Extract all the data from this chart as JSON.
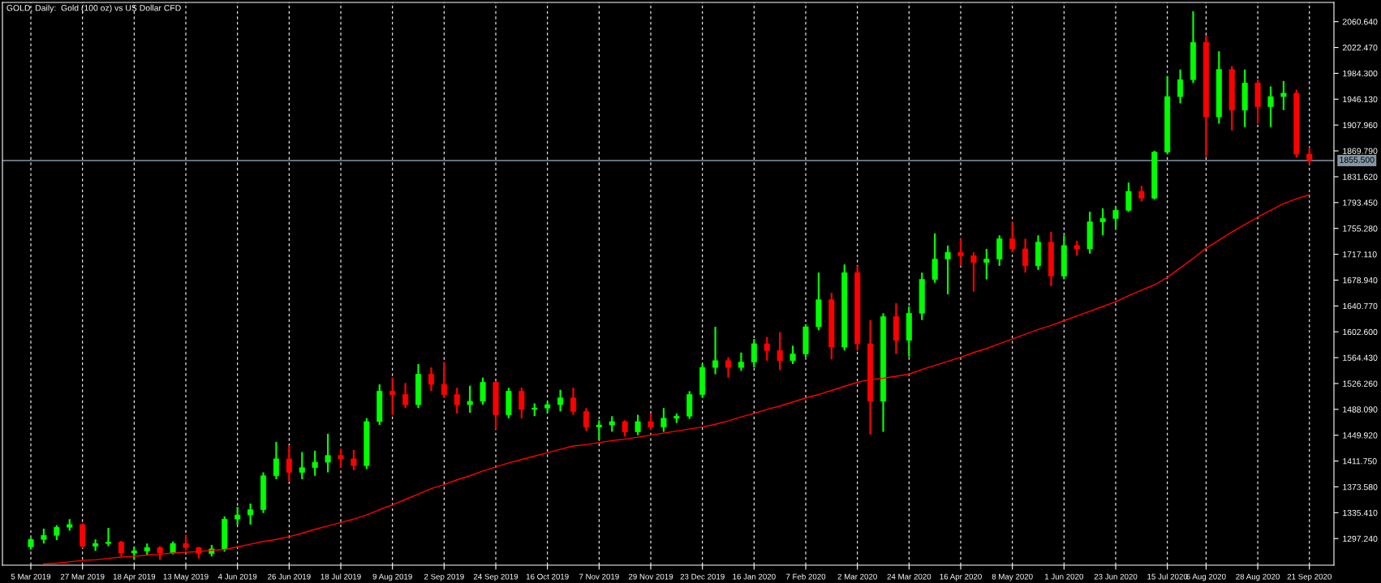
{
  "chart_data": {
    "type": "candlestick",
    "title": "GOLD, Daily:  Gold (100 oz) vs US Dollar CFD",
    "categories": [
      "5 Mar 2019",
      null,
      null,
      null,
      "27 Mar 2019",
      null,
      null,
      null,
      "18 Apr 2019",
      null,
      null,
      null,
      "13 May 2019",
      null,
      null,
      null,
      "4 Jun 2019",
      null,
      null,
      null,
      "26 Jun 2019",
      null,
      null,
      null,
      "18 Jul 2019",
      null,
      null,
      null,
      "9 Aug 2019",
      null,
      null,
      null,
      "2 Sep 2019",
      null,
      null,
      null,
      "24 Sep 2019",
      null,
      null,
      null,
      "16 Oct 2019",
      null,
      null,
      null,
      "7 Nov 2019",
      null,
      null,
      null,
      "29 Nov 2019",
      null,
      null,
      null,
      "23 Dec 2019",
      null,
      null,
      null,
      "16 Jan 2020",
      null,
      null,
      null,
      "7 Feb 2020",
      null,
      null,
      null,
      "2 Mar 2020",
      null,
      null,
      null,
      "24 Mar 2020",
      null,
      null,
      null,
      "16 Apr 2020",
      null,
      null,
      null,
      "8 May 2020",
      null,
      null,
      null,
      "1 Jun 2020",
      null,
      null,
      null,
      "23 Jun 2020",
      null,
      null,
      null,
      "15 Jul 2020",
      null,
      null,
      "6 Aug 2020",
      null,
      null,
      null,
      "28 Aug 2020",
      null,
      null,
      null,
      "21 Sep 2020"
    ],
    "ohlc": [
      [
        1285,
        1298,
        1281,
        1296
      ],
      [
        1296,
        1312,
        1290,
        1302
      ],
      [
        1302,
        1317,
        1295,
        1314
      ],
      [
        1314,
        1326,
        1309,
        1318
      ],
      [
        1318,
        1320,
        1283,
        1286
      ],
      [
        1286,
        1296,
        1279,
        1290
      ],
      [
        1290,
        1313,
        1286,
        1292
      ],
      [
        1292,
        1294,
        1271,
        1276
      ],
      [
        1276,
        1285,
        1266,
        1279
      ],
      [
        1279,
        1290,
        1273,
        1284
      ],
      [
        1284,
        1286,
        1266,
        1276
      ],
      [
        1276,
        1293,
        1274,
        1290
      ],
      [
        1290,
        1303,
        1280,
        1284
      ],
      [
        1284,
        1285,
        1268,
        1275
      ],
      [
        1275,
        1288,
        1271,
        1282
      ],
      [
        1282,
        1330,
        1278,
        1326
      ],
      [
        1326,
        1344,
        1318,
        1332
      ],
      [
        1332,
        1349,
        1318,
        1340
      ],
      [
        1340,
        1395,
        1335,
        1390
      ],
      [
        1390,
        1440,
        1385,
        1415
      ],
      [
        1415,
        1435,
        1382,
        1395
      ],
      [
        1395,
        1425,
        1385,
        1402
      ],
      [
        1402,
        1427,
        1390,
        1410
      ],
      [
        1410,
        1452,
        1395,
        1420
      ],
      [
        1420,
        1430,
        1402,
        1415
      ],
      [
        1415,
        1428,
        1398,
        1405
      ],
      [
        1405,
        1475,
        1400,
        1470
      ],
      [
        1470,
        1525,
        1465,
        1515
      ],
      [
        1515,
        1535,
        1480,
        1510
      ],
      [
        1510,
        1527,
        1490,
        1495
      ],
      [
        1495,
        1555,
        1490,
        1540
      ],
      [
        1540,
        1550,
        1515,
        1525
      ],
      [
        1525,
        1558,
        1505,
        1510
      ],
      [
        1510,
        1520,
        1482,
        1495
      ],
      [
        1495,
        1523,
        1483,
        1500
      ],
      [
        1500,
        1535,
        1495,
        1528
      ],
      [
        1528,
        1530,
        1459,
        1480
      ],
      [
        1480,
        1520,
        1475,
        1515
      ],
      [
        1515,
        1520,
        1475,
        1488
      ],
      [
        1488,
        1497,
        1478,
        1490
      ],
      [
        1490,
        1500,
        1483,
        1495
      ],
      [
        1495,
        1517,
        1485,
        1505
      ],
      [
        1505,
        1520,
        1480,
        1485
      ],
      [
        1485,
        1490,
        1456,
        1462
      ],
      [
        1462,
        1472,
        1443,
        1465
      ],
      [
        1465,
        1478,
        1455,
        1470
      ],
      [
        1470,
        1472,
        1448,
        1455
      ],
      [
        1455,
        1480,
        1450,
        1470
      ],
      [
        1470,
        1482,
        1458,
        1462
      ],
      [
        1462,
        1490,
        1455,
        1475
      ],
      [
        1475,
        1482,
        1468,
        1478
      ],
      [
        1478,
        1515,
        1474,
        1510
      ],
      [
        1510,
        1555,
        1505,
        1550
      ],
      [
        1550,
        1610,
        1540,
        1560
      ],
      [
        1560,
        1565,
        1535,
        1550
      ],
      [
        1550,
        1572,
        1545,
        1558
      ],
      [
        1558,
        1592,
        1550,
        1585
      ],
      [
        1585,
        1595,
        1560,
        1575
      ],
      [
        1575,
        1602,
        1546,
        1560
      ],
      [
        1560,
        1582,
        1555,
        1570
      ],
      [
        1570,
        1614,
        1565,
        1610
      ],
      [
        1610,
        1690,
        1605,
        1650
      ],
      [
        1650,
        1660,
        1562,
        1580
      ],
      [
        1580,
        1702,
        1575,
        1690
      ],
      [
        1690,
        1700,
        1575,
        1585
      ],
      [
        1585,
        1620,
        1451,
        1500
      ],
      [
        1500,
        1630,
        1455,
        1625
      ],
      [
        1625,
        1645,
        1570,
        1590
      ],
      [
        1590,
        1640,
        1566,
        1630
      ],
      [
        1630,
        1690,
        1620,
        1680
      ],
      [
        1680,
        1748,
        1675,
        1710
      ],
      [
        1710,
        1730,
        1658,
        1720
      ],
      [
        1720,
        1740,
        1700,
        1715
      ],
      [
        1715,
        1720,
        1662,
        1705
      ],
      [
        1705,
        1725,
        1680,
        1710
      ],
      [
        1710,
        1745,
        1700,
        1740
      ],
      [
        1740,
        1764,
        1720,
        1725
      ],
      [
        1725,
        1740,
        1690,
        1700
      ],
      [
        1700,
        1745,
        1694,
        1735
      ],
      [
        1735,
        1750,
        1670,
        1685
      ],
      [
        1685,
        1745,
        1680,
        1730
      ],
      [
        1730,
        1737,
        1715,
        1725
      ],
      [
        1725,
        1780,
        1718,
        1765
      ],
      [
        1765,
        1785,
        1745,
        1770
      ],
      [
        1770,
        1788,
        1755,
        1782
      ],
      [
        1782,
        1823,
        1780,
        1810
      ],
      [
        1810,
        1818,
        1795,
        1800
      ],
      [
        1800,
        1870,
        1798,
        1868
      ],
      [
        1868,
        1980,
        1865,
        1950
      ],
      [
        1950,
        1990,
        1940,
        1975
      ],
      [
        1975,
        2076,
        1970,
        2030
      ],
      [
        2030,
        2040,
        1861,
        1920
      ],
      [
        1920,
        2017,
        1910,
        1990
      ],
      [
        1990,
        1995,
        1900,
        1930
      ],
      [
        1930,
        1990,
        1905,
        1970
      ],
      [
        1970,
        1975,
        1910,
        1935
      ],
      [
        1935,
        1965,
        1905,
        1950
      ],
      [
        1950,
        1973,
        1930,
        1955
      ],
      [
        1955,
        1960,
        1860,
        1865
      ],
      [
        1865,
        1875,
        1850,
        1856
      ]
    ],
    "colors": [
      "#00ff00",
      "#00ff00",
      "#00ff00",
      "#00ff00",
      "#ff0000",
      "#00ff00",
      "#00ff00",
      "#ff0000",
      "#00ff00",
      "#00ff00",
      "#ff0000",
      "#00ff00",
      "#ff0000",
      "#ff0000",
      "#00ff00",
      "#00ff00",
      "#00ff00",
      "#00ff00",
      "#00ff00",
      "#00ff00",
      "#ff0000",
      "#00ff00",
      "#00ff00",
      "#00ff00",
      "#ff0000",
      "#ff0000",
      "#00ff00",
      "#00ff00",
      "#ff0000",
      "#ff0000",
      "#00ff00",
      "#ff0000",
      "#ff0000",
      "#ff0000",
      "#00ff00",
      "#00ff00",
      "#ff0000",
      "#00ff00",
      "#ff0000",
      "#00ff00",
      "#00ff00",
      "#00ff00",
      "#ff0000",
      "#ff0000",
      "#00ff00",
      "#00ff00",
      "#ff0000",
      "#00ff00",
      "#ff0000",
      "#00ff00",
      "#00ff00",
      "#00ff00",
      "#00ff00",
      "#00ff00",
      "#ff0000",
      "#00ff00",
      "#00ff00",
      "#ff0000",
      "#ff0000",
      "#00ff00",
      "#00ff00",
      "#00ff00",
      "#ff0000",
      "#00ff00",
      "#ff0000",
      "#ff0000",
      "#00ff00",
      "#ff0000",
      "#00ff00",
      "#00ff00",
      "#00ff00",
      "#00ff00",
      "#ff0000",
      "#ff0000",
      "#00ff00",
      "#00ff00",
      "#ff0000",
      "#ff0000",
      "#00ff00",
      "#ff0000",
      "#00ff00",
      "#ff0000",
      "#00ff00",
      "#00ff00",
      "#00ff00",
      "#00ff00",
      "#ff0000",
      "#00ff00",
      "#00ff00",
      "#00ff00",
      "#00ff00",
      "#ff0000",
      "#00ff00",
      "#ff0000",
      "#00ff00",
      "#ff0000",
      "#00ff00",
      "#00ff00",
      "#ff0000",
      "#ff0000"
    ],
    "series": [
      {
        "type": "line",
        "color": "#ff0000",
        "values": [
          null,
          1260,
          1261,
          1263,
          1265,
          1266,
          1268,
          1270,
          1271,
          1273,
          1274,
          1276,
          1277,
          1278,
          1280,
          1281,
          1285,
          1289,
          1293,
          1296,
          1300,
          1305,
          1311,
          1316,
          1321,
          1326,
          1332,
          1340,
          1347,
          1355,
          1363,
          1371,
          1377,
          1384,
          1390,
          1397,
          1403,
          1409,
          1414,
          1419,
          1424,
          1429,
          1434,
          1436,
          1439,
          1442,
          1444,
          1447,
          1450,
          1453,
          1456,
          1459,
          1462,
          1466,
          1471,
          1477,
          1482,
          1488,
          1493,
          1499,
          1505,
          1510,
          1516,
          1522,
          1528,
          1532,
          1534,
          1537,
          1540,
          1547,
          1553,
          1559,
          1565,
          1572,
          1578,
          1585,
          1592,
          1599,
          1606,
          1612,
          1619,
          1626,
          1633,
          1640,
          1647,
          1656,
          1664,
          1672,
          1683,
          1697,
          1711,
          1726,
          1738,
          1750,
          1761,
          1772,
          1782,
          1792,
          1799,
          1805
        ]
      }
    ],
    "ylim": [
      1258,
      2089
    ],
    "yticks": [
      {
        "value": 1297.24,
        "label": "1297.240"
      },
      {
        "value": 1335.41,
        "label": "1335.410"
      },
      {
        "value": 1373.58,
        "label": "1373.580"
      },
      {
        "value": 1411.75,
        "label": "1411.750"
      },
      {
        "value": 1449.92,
        "label": "1449.920"
      },
      {
        "value": 1488.09,
        "label": "1488.090"
      },
      {
        "value": 1526.26,
        "label": "1526.260"
      },
      {
        "value": 1564.43,
        "label": "1564.430"
      },
      {
        "value": 1602.6,
        "label": "1602.600"
      },
      {
        "value": 1640.77,
        "label": "1640.770"
      },
      {
        "value": 1678.94,
        "label": "1678.940"
      },
      {
        "value": 1717.11,
        "label": "1717.110"
      },
      {
        "value": 1755.28,
        "label": "1755.280"
      },
      {
        "value": 1793.45,
        "label": "1793.450"
      },
      {
        "value": 1831.62,
        "label": "1831.620"
      },
      {
        "value": 1869.79,
        "label": "1869.790"
      },
      {
        "value": 1907.96,
        "label": "1907.960"
      },
      {
        "value": 1946.13,
        "label": "1946.130"
      },
      {
        "value": 1984.3,
        "label": "1984.300"
      },
      {
        "value": 2022.47,
        "label": "2022.470"
      },
      {
        "value": 2060.64,
        "label": "2060.640"
      }
    ],
    "ref_lines": [
      {
        "axis": "y",
        "value": 1855.5,
        "label": "1855.500",
        "color": "#8496a6",
        "line_style": "solid"
      }
    ],
    "grid": "x"
  }
}
